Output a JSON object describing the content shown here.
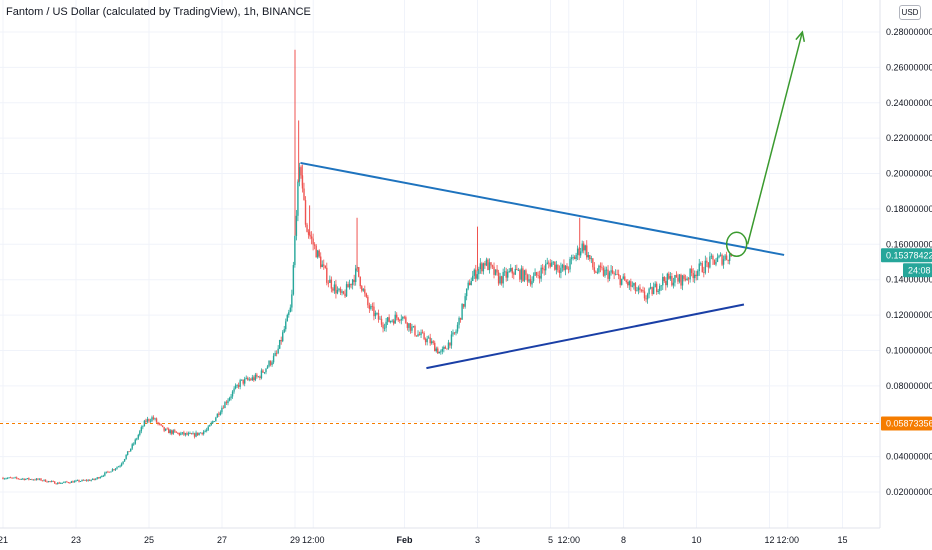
{
  "header": {
    "title": "Fantom / US Dollar (calculated by TradingView), 1h, BINANCE",
    "currency": "USD"
  },
  "chart_data": {
    "type": "candlestick",
    "title": "Fantom / US Dollar (calculated by TradingView), 1h, BINANCE",
    "y_ticks": [
      "0.28000000",
      "0.26000000",
      "0.24000000",
      "0.22000000",
      "0.20000000",
      "0.18000000",
      "0.16000000",
      "0.14000000",
      "0.12000000",
      "0.10000000",
      "0.08000000",
      "0.06000000",
      "0.04000000",
      "0.02000000"
    ],
    "y_tick_values": [
      0.28,
      0.26,
      0.24,
      0.22,
      0.2,
      0.18,
      0.16,
      0.14,
      0.12,
      0.1,
      0.08,
      0.06,
      0.04,
      0.02
    ],
    "ylim": [
      0.0,
      0.29
    ],
    "x_ticks": [
      "21",
      "23",
      "25",
      "27",
      "29",
      "12:00",
      "Feb",
      "3",
      "5",
      "12:00",
      "8",
      "10",
      "12",
      "12:00",
      "15"
    ],
    "x_tick_days": [
      0,
      2,
      4,
      6,
      8,
      8.5,
      11,
      13,
      15,
      15.5,
      17,
      19,
      21,
      21.5,
      23
    ],
    "xlim": [
      0,
      24.6
    ],
    "grid": true,
    "price_series": [
      [
        0.0,
        0.028
      ],
      [
        1.0,
        0.027
      ],
      [
        1.5,
        0.025
      ],
      [
        2.5,
        0.027
      ],
      [
        3.2,
        0.035
      ],
      [
        3.6,
        0.048
      ],
      [
        3.9,
        0.06
      ],
      [
        4.1,
        0.062
      ],
      [
        4.4,
        0.055
      ],
      [
        4.8,
        0.053
      ],
      [
        5.2,
        0.052
      ],
      [
        5.6,
        0.055
      ],
      [
        6.0,
        0.068
      ],
      [
        6.5,
        0.082
      ],
      [
        7.0,
        0.085
      ],
      [
        7.5,
        0.098
      ],
      [
        7.9,
        0.125
      ],
      [
        8.05,
        0.185
      ],
      [
        8.15,
        0.205
      ],
      [
        8.3,
        0.17
      ],
      [
        8.5,
        0.16
      ],
      [
        8.9,
        0.14
      ],
      [
        9.3,
        0.13
      ],
      [
        9.7,
        0.145
      ],
      [
        10.0,
        0.125
      ],
      [
        10.4,
        0.115
      ],
      [
        10.9,
        0.12
      ],
      [
        11.3,
        0.11
      ],
      [
        11.7,
        0.105
      ],
      [
        12.0,
        0.098
      ],
      [
        12.4,
        0.11
      ],
      [
        12.8,
        0.14
      ],
      [
        13.2,
        0.15
      ],
      [
        13.6,
        0.14
      ],
      [
        14.0,
        0.145
      ],
      [
        14.5,
        0.14
      ],
      [
        15.0,
        0.15
      ],
      [
        15.4,
        0.145
      ],
      [
        15.9,
        0.16
      ],
      [
        16.2,
        0.145
      ],
      [
        16.7,
        0.143
      ],
      [
        17.1,
        0.138
      ],
      [
        17.6,
        0.13
      ],
      [
        18.1,
        0.14
      ],
      [
        18.6,
        0.14
      ],
      [
        19.0,
        0.145
      ],
      [
        19.4,
        0.15
      ],
      [
        19.7,
        0.152
      ],
      [
        19.9,
        0.1538
      ]
    ],
    "spikes": [
      [
        8.0,
        0.27
      ],
      [
        8.1,
        0.23
      ],
      [
        8.2,
        0.205
      ],
      [
        8.4,
        0.182
      ],
      [
        9.7,
        0.175
      ],
      [
        13.0,
        0.17
      ],
      [
        15.8,
        0.175
      ]
    ],
    "last_price": "0.15378422",
    "countdown": "24:08",
    "support_level": "0.05873356",
    "support_value": 0.05873356,
    "colors": {
      "up": "#26a69a",
      "down": "#ef5350",
      "last_price_tag": "#26a69a",
      "support": "#f57c00",
      "trend_upper": "#1e73be",
      "trend_lower": "#1a3fa6",
      "projection": "#3a9a2e"
    },
    "annotations": {
      "upper_trendline": [
        [
          8.15,
          0.206
        ],
        [
          21.4,
          0.154
        ]
      ],
      "lower_trendline": [
        [
          11.6,
          0.09
        ],
        [
          20.3,
          0.126
        ]
      ],
      "circle": [
        20.1,
        0.16
      ],
      "arrow": [
        [
          20.4,
          0.16
        ],
        [
          21.9,
          0.28
        ]
      ]
    }
  }
}
